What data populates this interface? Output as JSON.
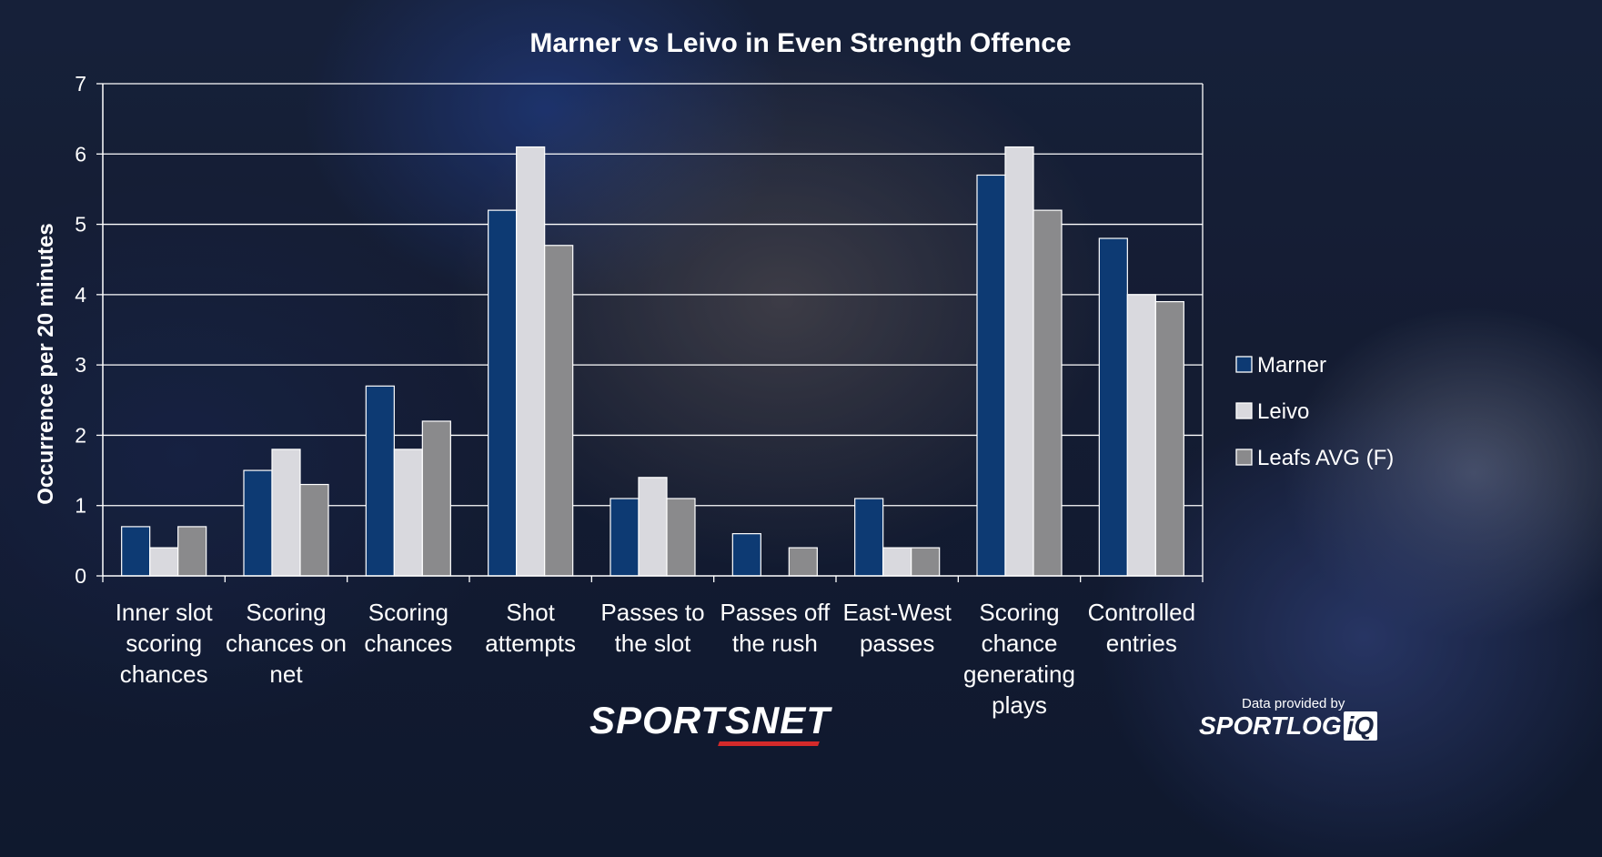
{
  "chart_data": {
    "type": "bar",
    "title": "Marner vs Leivo in Even Strength Offence",
    "xlabel": "",
    "ylabel": "Occurrence per 20 minutes",
    "ylim": [
      0,
      7
    ],
    "yticks": [
      0,
      1,
      2,
      3,
      4,
      5,
      6,
      7
    ],
    "grid": true,
    "legend_position": "right",
    "categories": [
      [
        "Inner slot",
        "scoring",
        "chances"
      ],
      [
        "Scoring",
        "chances on",
        "net"
      ],
      [
        "Scoring",
        "chances"
      ],
      [
        "Shot",
        "attempts"
      ],
      [
        "Passes to",
        "the slot"
      ],
      [
        "Passes off",
        "the rush"
      ],
      [
        "East-West",
        "passes"
      ],
      [
        "Scoring",
        "chance",
        "generating",
        "plays"
      ],
      [
        "Controlled",
        "entries"
      ]
    ],
    "series": [
      {
        "name": "Marner",
        "color": "#0d3a73",
        "values": [
          0.7,
          1.5,
          2.7,
          5.2,
          1.1,
          0.6,
          1.1,
          5.7,
          4.8
        ]
      },
      {
        "name": "Leivo",
        "color": "#d9d9de",
        "values": [
          0.4,
          1.8,
          1.8,
          6.1,
          1.4,
          0.0,
          0.4,
          6.1,
          4.0
        ]
      },
      {
        "name": "Leafs AVG (F)",
        "color": "#8a8a8c",
        "values": [
          0.7,
          1.3,
          2.2,
          4.7,
          1.1,
          0.4,
          0.4,
          5.2,
          3.9
        ]
      }
    ]
  },
  "branding": {
    "sportsnet": "SPORTSNET",
    "provided_by": "Data provided by",
    "sportlogiq_main": "SPORTLOG",
    "sportlogiq_iq": "iQ"
  }
}
